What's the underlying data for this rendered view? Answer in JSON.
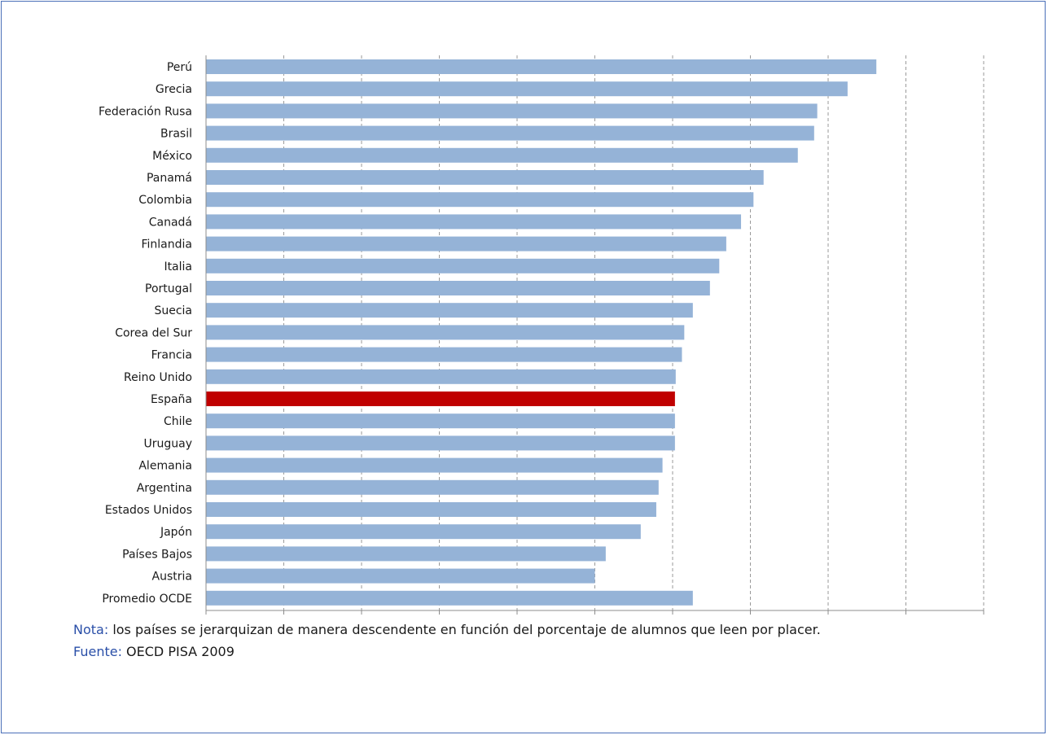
{
  "chart_data": {
    "type": "bar",
    "orientation": "horizontal",
    "categories": [
      "Perú",
      "Grecia",
      "Federación Rusa",
      "Brasil",
      "México",
      "Panamá",
      "Colombia",
      "Canadá",
      "Finlandia",
      "Italia",
      "Portugal",
      "Suecia",
      "Corea del Sur",
      "Francia",
      "Reino Unido",
      "España",
      "Chile",
      "Uruguay",
      "Alemania",
      "Argentina",
      "Estados Unidos",
      "Japón",
      "Países Bajos",
      "Austria",
      "Promedio OCDE"
    ],
    "values": [
      86.2,
      82.5,
      78.6,
      78.2,
      76.1,
      71.7,
      70.4,
      68.8,
      66.9,
      66.0,
      64.8,
      62.6,
      61.5,
      61.2,
      60.4,
      60.3,
      60.3,
      60.3,
      58.7,
      58.2,
      57.9,
      55.9,
      51.4,
      50.0,
      62.6
    ],
    "highlight": "España",
    "colors": {
      "bar": "#95b3d7",
      "highlight": "#c00000",
      "grid": "#9a9a9a"
    },
    "xlim": [
      0,
      100
    ],
    "xticks": [
      "0,0",
      "10,0",
      "20,0",
      "30,0",
      "40,0",
      "50,0",
      "60,0",
      "70,0",
      "80,0",
      "90,0",
      "100,0"
    ],
    "grid": "vertical dashed",
    "title": "",
    "xlabel": "",
    "ylabel": ""
  },
  "notes": {
    "nota_label": "Nota:",
    "nota_text": " los países se jerarquizan de manera descendente en función del porcentaje de alumnos que leen por placer.",
    "fuente_label": "Fuente:",
    "fuente_text": " OECD PISA 2009"
  },
  "colors": {
    "frame_border": "#4a6fb8",
    "note_label": "#2a4fa8"
  }
}
